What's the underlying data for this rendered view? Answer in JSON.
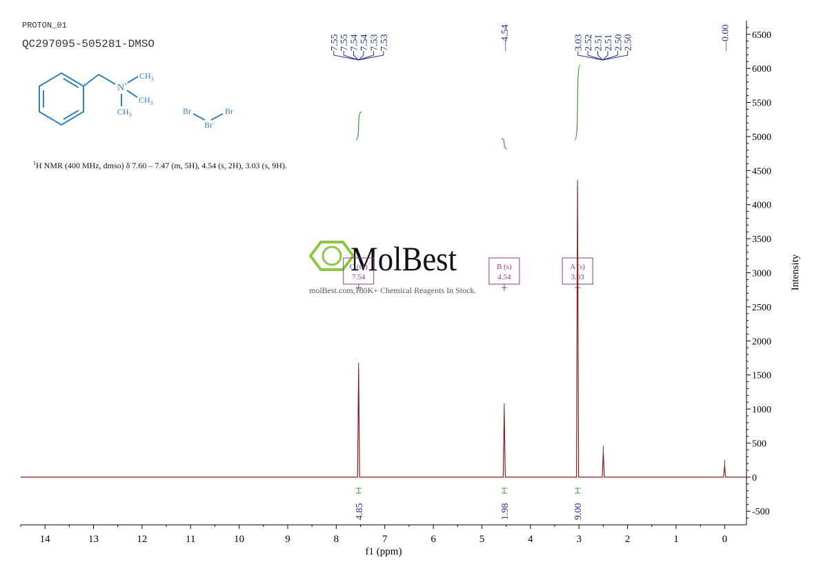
{
  "header": {
    "experiment": "PROTON_01",
    "sample": "QC297095-505281-DMSO"
  },
  "summary": {
    "sup": "1",
    "text": "H NMR (400 MHz, dmso) δ 7.60 – 7.47 (m, 5H), 4.54 (s, 2H), 3.03 (s, 9H)."
  },
  "structure": {
    "methyl_top": "CH",
    "methyl_mid": "CH",
    "methyl_bot": "CH",
    "subscript": "3",
    "nitrogen": "N",
    "plus": "+",
    "br_left": "Br",
    "br_right": "Br",
    "br_center": "Br",
    "minus": "-"
  },
  "watermark": {
    "brand": "MolBest",
    "tagline": "molBest.com,180K+ Chemical Reagents In Stock."
  },
  "colors": {
    "spectrum": "#8b1a1a",
    "integral": "#3b9a3b",
    "peak_label": "#1f2d8a",
    "multiplet_box": "#8a3a8a",
    "structure": "#2f7fc1",
    "watermark_green": "#8dc63f"
  },
  "chart_data": {
    "type": "line",
    "xlabel": "f1 (ppm)",
    "ylabel": "Intensity",
    "xlim": [
      14.5,
      -0.45
    ],
    "ylim": [
      -700,
      6700
    ],
    "x_ticks": [
      14,
      13,
      12,
      11,
      10,
      9,
      8,
      7,
      6,
      5,
      4,
      3,
      2,
      1,
      0
    ],
    "y_ticks": [
      -500,
      0,
      500,
      1000,
      1500,
      2000,
      2500,
      3000,
      3500,
      4000,
      4500,
      5000,
      5500,
      6000,
      6500
    ],
    "peaks": [
      {
        "ppm": 7.54,
        "intensity": 1600
      },
      {
        "ppm": 4.54,
        "intensity": 1000
      },
      {
        "ppm": 3.03,
        "intensity": 4280
      },
      {
        "ppm": 2.5,
        "intensity": 380
      },
      {
        "ppm": 0.0,
        "intensity": 170
      }
    ],
    "peak_labels": [
      {
        "group": "aromatic",
        "labels": [
          "7.55",
          "7.55",
          "7.54",
          "7.54",
          "7.53",
          "7.53"
        ],
        "center": 7.54
      },
      {
        "group": "ch2",
        "labels": [
          "4.54"
        ],
        "center": 4.54
      },
      {
        "group": "aliphatic",
        "labels": [
          "3.03",
          "2.52",
          "2.51",
          "2.51",
          "2.50",
          "2.50"
        ],
        "center": 2.51
      },
      {
        "group": "tms",
        "labels": [
          "0.00"
        ],
        "center": 0.0
      }
    ],
    "integrals": [
      {
        "ppm": 7.54,
        "value": "4.85",
        "curve": [
          4950,
          5360
        ]
      },
      {
        "ppm": 4.54,
        "value": "1.98",
        "curve": [
          4970,
          4820
        ]
      },
      {
        "ppm": 3.03,
        "value": "9.00",
        "curve": [
          4950,
          6050
        ]
      }
    ],
    "multiplets": [
      {
        "letter": "C",
        "type": "(m)",
        "shift": "7.54",
        "ppm": 7.54
      },
      {
        "letter": "B",
        "type": "(s)",
        "shift": "4.54",
        "ppm": 4.54
      },
      {
        "letter": "A",
        "type": "(s)",
        "shift": "3.03",
        "ppm": 3.03
      }
    ]
  }
}
